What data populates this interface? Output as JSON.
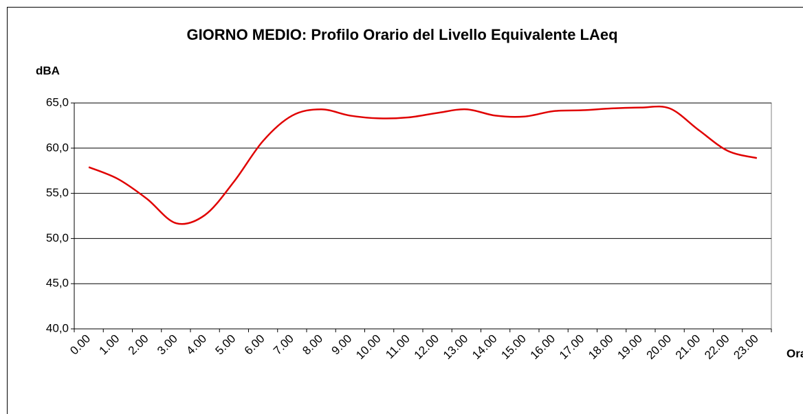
{
  "chart_data": {
    "type": "line",
    "title": "GIORNO MEDIO: Profilo Orario del Livello Equivalente LAeq",
    "y_label": "dBA",
    "x_label": "Ora",
    "categories": [
      "0.00",
      "1.00",
      "2.00",
      "3.00",
      "4.00",
      "5.00",
      "6.00",
      "7.00",
      "8.00",
      "9.00",
      "10.00",
      "11.00",
      "12.00",
      "13.00",
      "14.00",
      "15.00",
      "16.00",
      "17.00",
      "18.00",
      "19.00",
      "20.00",
      "21.00",
      "22.00",
      "23.00"
    ],
    "series": [
      {
        "name": "LAeq",
        "color": "#e00000",
        "values": [
          57.9,
          56.6,
          54.4,
          51.7,
          52.6,
          56.3,
          60.8,
          63.6,
          64.3,
          63.6,
          63.3,
          63.4,
          63.9,
          64.3,
          63.6,
          63.5,
          64.1,
          64.2,
          64.4,
          64.5,
          64.4,
          62.0,
          59.7,
          58.9
        ]
      }
    ],
    "ylim": [
      40,
      65
    ],
    "yticks": [
      {
        "value": 40,
        "label": "40,0"
      },
      {
        "value": 45,
        "label": "45,0"
      },
      {
        "value": 50,
        "label": "50,0"
      },
      {
        "value": 55,
        "label": "55,0"
      },
      {
        "value": 60,
        "label": "60,0"
      },
      {
        "value": 65,
        "label": "65,0"
      }
    ],
    "grid": true
  }
}
